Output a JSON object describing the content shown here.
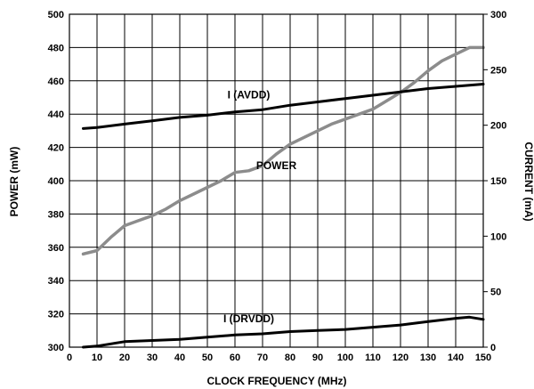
{
  "chart_data": {
    "type": "line",
    "title": "",
    "xlabel": "CLOCK FREQUENCY (MHz)",
    "ylabel": "POWER (mW)",
    "y2label": "CURRENT (mA)",
    "xlim": [
      0,
      150
    ],
    "ylim": [
      300,
      500
    ],
    "y2lim": [
      0,
      300
    ],
    "grid": true,
    "x_ticks": [
      0,
      10,
      20,
      30,
      40,
      50,
      60,
      70,
      80,
      90,
      100,
      110,
      120,
      130,
      140,
      150
    ],
    "y_ticks": [
      300,
      320,
      340,
      360,
      380,
      400,
      420,
      440,
      460,
      480,
      500
    ],
    "y2_ticks": [
      0,
      50,
      100,
      150,
      200,
      250,
      300
    ],
    "series": [
      {
        "name": "POWER",
        "axis": "left",
        "color": "#8c8c8c",
        "x": [
          5,
          10,
          15,
          20,
          25,
          30,
          35,
          40,
          45,
          50,
          55,
          60,
          65,
          70,
          75,
          80,
          85,
          90,
          95,
          100,
          105,
          110,
          115,
          120,
          125,
          130,
          135,
          140,
          145,
          150
        ],
        "y": [
          356,
          358,
          366,
          373,
          376,
          379,
          383,
          388,
          392,
          396,
          400,
          405,
          406,
          409,
          416,
          422,
          426,
          430,
          434,
          437,
          440,
          443,
          448,
          453,
          459,
          466,
          472,
          476,
          480,
          480
        ]
      },
      {
        "name": "I (AVDD)",
        "axis": "right",
        "color": "#000000",
        "x": [
          5,
          10,
          20,
          30,
          40,
          50,
          60,
          70,
          80,
          90,
          100,
          110,
          120,
          130,
          140,
          150
        ],
        "y": [
          197,
          198,
          201,
          204,
          207,
          209,
          212,
          214,
          218,
          221,
          224,
          227,
          230,
          233,
          235,
          237
        ]
      },
      {
        "name": "I (DRVDD)",
        "axis": "right",
        "color": "#000000",
        "x": [
          5,
          10,
          20,
          30,
          40,
          50,
          60,
          70,
          80,
          90,
          100,
          110,
          120,
          130,
          140,
          145,
          150
        ],
        "y": [
          0,
          1,
          5,
          6,
          7,
          9,
          11,
          12,
          14,
          15,
          16,
          18,
          20,
          23,
          26,
          27,
          25
        ]
      }
    ]
  }
}
